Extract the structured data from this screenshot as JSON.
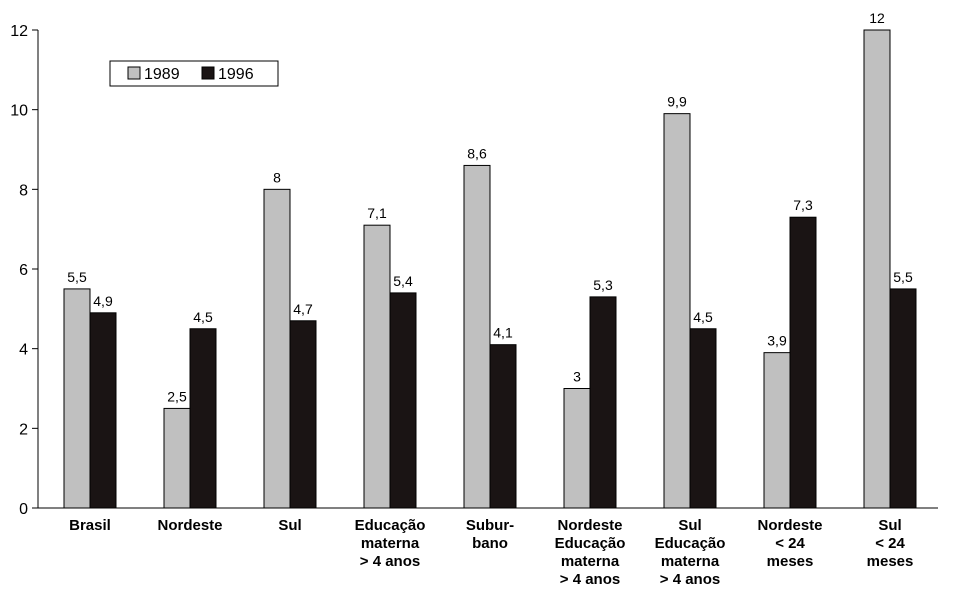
{
  "chart_data": {
    "type": "bar",
    "title": "",
    "xlabel": "",
    "ylabel": "",
    "ylim": [
      0,
      12
    ],
    "yticks": [
      "0",
      "2",
      "4",
      "6",
      "8",
      "10",
      "12"
    ],
    "categories": [
      [
        "Brasil"
      ],
      [
        "Nordeste"
      ],
      [
        "Sul"
      ],
      [
        "Educação",
        "materna",
        "> 4 anos"
      ],
      [
        "Subur-",
        "bano"
      ],
      [
        "Nordeste",
        "Educação",
        "materna",
        "> 4 anos"
      ],
      [
        "Sul",
        "Educação",
        "materna",
        "> 4 anos"
      ],
      [
        "Nordeste",
        "< 24",
        "meses"
      ],
      [
        "Sul",
        "< 24",
        "meses"
      ]
    ],
    "series": [
      {
        "name": "1989",
        "color": "#c0c0c0",
        "values": [
          5.5,
          2.5,
          8,
          7.1,
          8.6,
          3,
          9.9,
          3.9,
          12
        ],
        "labels": [
          "5,5",
          "2,5",
          "8",
          "7,1",
          "8,6",
          "3",
          "9,9",
          "3,9",
          "12"
        ]
      },
      {
        "name": "1996",
        "color": "#1a1414",
        "values": [
          4.9,
          4.5,
          4.7,
          5.4,
          4.1,
          5.3,
          4.5,
          7.3,
          5.5
        ],
        "labels": [
          "4,9",
          "4,5",
          "4,7",
          "5,4",
          "4,1",
          "5,3",
          "4,5",
          "7,3",
          "5,5"
        ]
      }
    ],
    "grid": false,
    "legend_position": "top-left"
  }
}
